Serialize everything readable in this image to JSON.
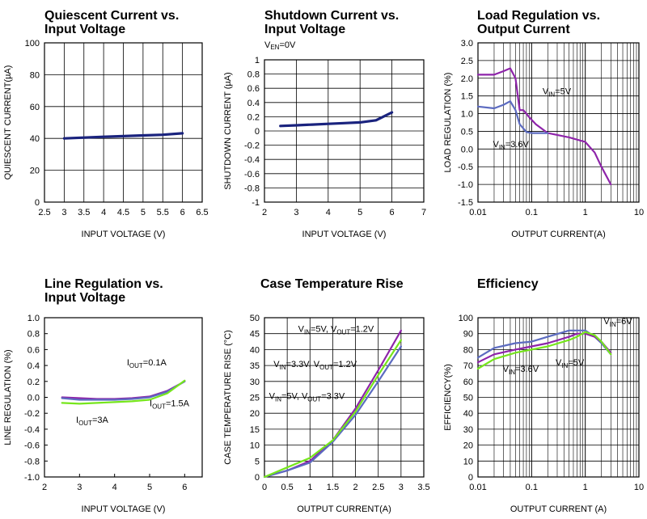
{
  "chart_data": [
    {
      "type": "line",
      "title": "Quiescent Current vs.\nInput Voltage",
      "xlabel": "INPUT VOLTAGE (V)",
      "ylabel": "QUIESCENT CURRENT(µA)",
      "xlim": [
        2.5,
        6.5
      ],
      "ylim": [
        0,
        100
      ],
      "xscale": "linear",
      "xticks": [
        "2.5",
        "3",
        "3.5",
        "4",
        "4.5",
        "5",
        "5.5",
        "6",
        "6.5"
      ],
      "yticks": [
        "0",
        "20",
        "40",
        "60",
        "80",
        "100"
      ],
      "grid": true,
      "series": [
        {
          "color": "#1a237e",
          "x": [
            3.0,
            3.5,
            4.0,
            4.5,
            5.0,
            5.5,
            6.0
          ],
          "y": [
            40.0,
            40.5,
            41.0,
            41.4,
            41.9,
            42.3,
            43.2
          ]
        }
      ],
      "annotations": []
    },
    {
      "type": "line",
      "title": "Shutdown Current vs.\nInput Voltage",
      "subtitle": "VEN=0V",
      "xlabel": "INPUT VOLTAGE (V)",
      "ylabel": "SHUTDOWN CURRENT (µA)",
      "xlim": [
        2,
        7
      ],
      "ylim": [
        -1,
        1
      ],
      "xscale": "linear",
      "xticks": [
        "2",
        "3",
        "4",
        "5",
        "6",
        "7"
      ],
      "yticks": [
        "-1",
        "-0.8",
        "-0.6",
        "-0.4",
        "-0.2",
        "0",
        "0.2",
        "0.4",
        "0.6",
        "0.8",
        "1"
      ],
      "grid": true,
      "series": [
        {
          "color": "#1a237e",
          "x": [
            2.5,
            3.0,
            3.5,
            4.0,
            4.5,
            5.0,
            5.5,
            6.0
          ],
          "y": [
            0.07,
            0.08,
            0.09,
            0.1,
            0.11,
            0.12,
            0.15,
            0.26
          ]
        }
      ],
      "annotations": []
    },
    {
      "type": "line",
      "title": "Load Regulation vs.\nOutput Current",
      "xlabel": "OUTPUT CURRENT(A)",
      "ylabel": "LOAD REGULATION (%)",
      "xlim": [
        0.01,
        10
      ],
      "ylim": [
        -1.5,
        3.0
      ],
      "xscale": "log",
      "xticks": [
        "0.01",
        "0.1",
        "1",
        "10"
      ],
      "yticks": [
        "-1.5",
        "-1.0",
        "-0.5",
        "0.0",
        "0.5",
        "1.0",
        "1.5",
        "2.0",
        "2.5",
        "3.0"
      ],
      "grid": true,
      "series": [
        {
          "name": "VIN=5V",
          "color": "#8e24aa",
          "x": [
            0.01,
            0.02,
            0.03,
            0.04,
            0.05,
            0.06,
            0.07,
            0.09,
            0.12,
            0.2,
            0.5,
            1.0,
            1.5,
            2.0,
            3.0
          ],
          "y": [
            2.1,
            2.1,
            2.2,
            2.28,
            2.0,
            1.1,
            1.1,
            0.9,
            0.7,
            0.45,
            0.33,
            0.2,
            -0.1,
            -0.5,
            -1.0
          ]
        },
        {
          "name": "VIN=3.6V",
          "color": "#5c6bc0",
          "x": [
            0.01,
            0.02,
            0.03,
            0.04,
            0.05,
            0.06,
            0.08,
            0.1,
            0.15,
            0.2
          ],
          "y": [
            1.2,
            1.15,
            1.25,
            1.35,
            1.1,
            0.7,
            0.48,
            0.45,
            0.45,
            0.45
          ]
        }
      ],
      "annotations": [
        {
          "text": "V",
          "sub": "IN",
          "after": "=5V",
          "x": 0.16,
          "y": 1.55
        },
        {
          "text": "V",
          "sub": "IN",
          "after": "=3.6V",
          "x": 0.019,
          "y": 0.05
        }
      ]
    },
    {
      "type": "line",
      "title": "Line Regulation vs.\nInput Voltage",
      "xlabel": "INPUT VOLTAGE (V)",
      "ylabel": "LINE REGULATION (%)",
      "xlim": [
        2,
        6.5
      ],
      "ylim": [
        -1.0,
        1.0
      ],
      "xscale": "linear",
      "xticks": [
        "2",
        "3",
        "4",
        "5",
        "6"
      ],
      "yticks": [
        "-1.0",
        "-0.8",
        "-0.6",
        "-0.4",
        "-0.2",
        "0.0",
        "0.2",
        "0.4",
        "0.6",
        "0.8",
        "1.0"
      ],
      "grid": false,
      "series": [
        {
          "name": "IOUT=0.1A",
          "color": "#8e24aa",
          "x": [
            2.5,
            3.0,
            3.5,
            4.0,
            4.5,
            5.0,
            5.5,
            6.0
          ],
          "y": [
            0.0,
            -0.01,
            -0.02,
            -0.02,
            -0.01,
            0.01,
            0.08,
            0.2
          ]
        },
        {
          "name": "IOUT=1.5A",
          "color": "#5c6bc0",
          "x": [
            2.5,
            3.0,
            3.5,
            4.0,
            4.5,
            5.0,
            5.5,
            6.0
          ],
          "y": [
            -0.01,
            -0.03,
            -0.03,
            -0.03,
            -0.02,
            0.0,
            0.07,
            0.2
          ]
        },
        {
          "name": "IOUT=3A",
          "color": "#76e61c",
          "x": [
            2.5,
            3.0,
            3.5,
            4.0,
            4.5,
            5.0,
            5.5,
            6.0
          ],
          "y": [
            -0.07,
            -0.08,
            -0.07,
            -0.06,
            -0.05,
            -0.03,
            0.05,
            0.21
          ]
        }
      ],
      "annotations": [
        {
          "text": "I",
          "sub": "OUT",
          "after": "=0.1A",
          "x": 4.35,
          "y": 0.4
        },
        {
          "text": "I",
          "sub": "OUT",
          "after": "=1.5A",
          "x": 5.0,
          "y": -0.11
        },
        {
          "text": "I",
          "sub": "OUT",
          "after": "=3A",
          "x": 2.9,
          "y": -0.32
        }
      ]
    },
    {
      "type": "line",
      "title": "Case Temperature Rise",
      "xlabel": "OUTPUT CURRENT(A)",
      "ylabel": "CASE TEMPERATURE RISE (°C)",
      "xlim": [
        0,
        3.5
      ],
      "ylim": [
        0,
        50
      ],
      "xscale": "linear",
      "xticks": [
        "0",
        "0.5",
        "1",
        "1.5",
        "2",
        "2.5",
        "3",
        "3.5"
      ],
      "yticks": [
        "0",
        "5",
        "10",
        "15",
        "20",
        "25",
        "30",
        "35",
        "40",
        "45",
        "50"
      ],
      "grid": true,
      "series": [
        {
          "name": "VIN=5V, VOUT=1.2V",
          "color": "#8e24aa",
          "x": [
            0,
            0.5,
            1.0,
            1.5,
            2.0,
            2.5,
            3.0
          ],
          "y": [
            0,
            2.0,
            5.0,
            11.5,
            21.5,
            33.5,
            46.0
          ]
        },
        {
          "name": "VIN=3.3V, VOUT=1.2V",
          "color": "#5c6bc0",
          "x": [
            0,
            0.5,
            1.0,
            1.5,
            2.0,
            2.5,
            3.0
          ],
          "y": [
            0,
            2.0,
            4.5,
            11.0,
            19.5,
            30.0,
            41.0
          ]
        },
        {
          "name": "VIN=5V, VOUT=3.3V",
          "color": "#76e61c",
          "x": [
            0,
            0.5,
            1.0,
            1.5,
            2.0,
            2.5,
            3.0
          ],
          "y": [
            0,
            3.0,
            6.0,
            11.5,
            20.5,
            32.0,
            43.0
          ]
        }
      ],
      "annotations": [
        {
          "text": "V",
          "sub": "IN",
          "after": "=5V, V",
          "sub2": "OUT",
          "after2": "=1.2V",
          "x": 0.74,
          "y": 45.5
        },
        {
          "text": "V",
          "sub": "IN",
          "after": "=3.3V, V",
          "sub2": "OUT",
          "after2": "=1.2V",
          "x": 0.2,
          "y": 34.5
        },
        {
          "text": "V",
          "sub": "IN",
          "after": "=5V, V",
          "sub2": "OUT",
          "after2": "=3.3V",
          "x": 0.1,
          "y": 24.5
        }
      ]
    },
    {
      "type": "line",
      "title": "Efficiency",
      "xlabel": "OUTPUT CURRENT (A)",
      "ylabel": "EFFICIENCY(%)",
      "xlim": [
        0.01,
        10
      ],
      "ylim": [
        0,
        100
      ],
      "xscale": "log",
      "xticks": [
        "0.01",
        "0.1",
        "1",
        "10"
      ],
      "yticks": [
        "0",
        "10",
        "20",
        "30",
        "40",
        "50",
        "60",
        "70",
        "80",
        "90",
        "100"
      ],
      "grid": true,
      "series": [
        {
          "name": "VIN=3.6V",
          "color": "#5c6bc0",
          "x": [
            0.01,
            0.02,
            0.05,
            0.1,
            0.2,
            0.5,
            0.7,
            1.0,
            1.5,
            2.0,
            3.0
          ],
          "y": [
            75,
            81,
            84,
            85,
            88,
            92,
            92,
            92,
            88,
            84,
            77
          ]
        },
        {
          "name": "VIN=5V",
          "color": "#8e24aa",
          "x": [
            0.01,
            0.02,
            0.05,
            0.1,
            0.2,
            0.5,
            0.7,
            1.0,
            1.5,
            2.0,
            3.0
          ],
          "y": [
            72,
            77,
            80,
            82,
            84,
            88,
            90,
            90,
            88,
            85,
            78
          ]
        },
        {
          "name": "VIN=6V",
          "color": "#76e61c",
          "x": [
            0.01,
            0.02,
            0.05,
            0.1,
            0.2,
            0.5,
            0.7,
            1.0,
            1.5,
            2.0,
            3.0
          ],
          "y": [
            68,
            74,
            78,
            80,
            82,
            86,
            88,
            91,
            89,
            85,
            77
          ]
        }
      ],
      "annotations": [
        {
          "text": "V",
          "sub": "IN",
          "after": "=6V",
          "x": 2.2,
          "y": 96
        },
        {
          "text": "V",
          "sub": "IN",
          "after": "=5V",
          "x": 0.28,
          "y": 70
        },
        {
          "text": "V",
          "sub": "IN",
          "after": "=3.6V",
          "x": 0.029,
          "y": 66
        }
      ]
    }
  ]
}
